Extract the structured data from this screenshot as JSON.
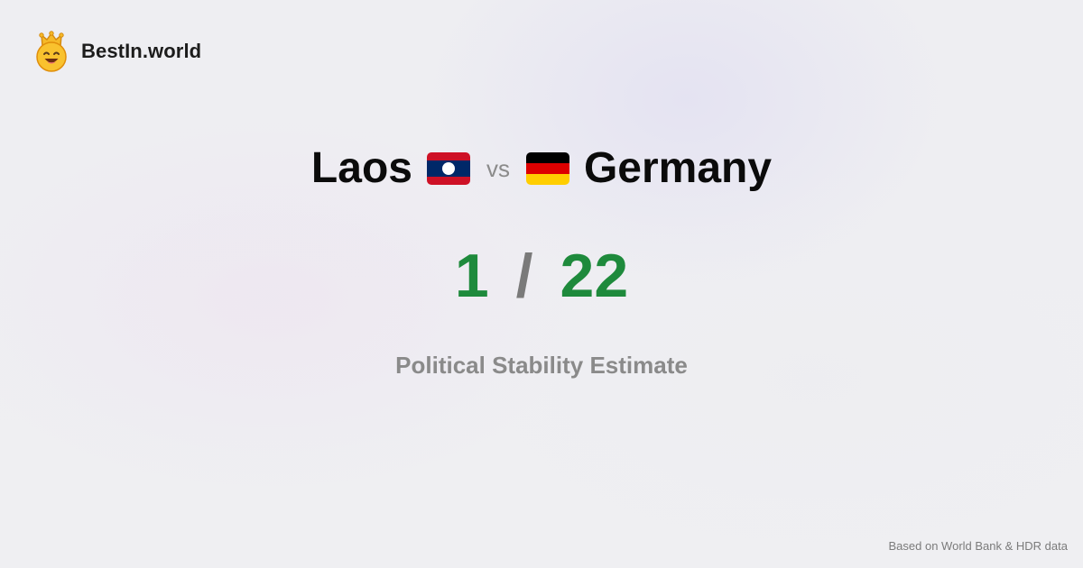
{
  "brand": {
    "name": "BestIn.world",
    "logo_icon": "crowned-smiley-icon"
  },
  "comparison": {
    "left": {
      "name": "Laos",
      "flag_icon": "laos-flag-icon"
    },
    "vs_label": "vs",
    "right": {
      "name": "Germany",
      "flag_icon": "germany-flag-icon"
    }
  },
  "scores": {
    "left": "1",
    "separator": "/",
    "right": "22"
  },
  "metric": {
    "label": "Political Stability Estimate"
  },
  "footer": {
    "source": "Based on World Bank & HDR data"
  },
  "colors": {
    "score": "#1e8a3c",
    "muted": "#8a8a8a",
    "text": "#0b0b0b"
  }
}
